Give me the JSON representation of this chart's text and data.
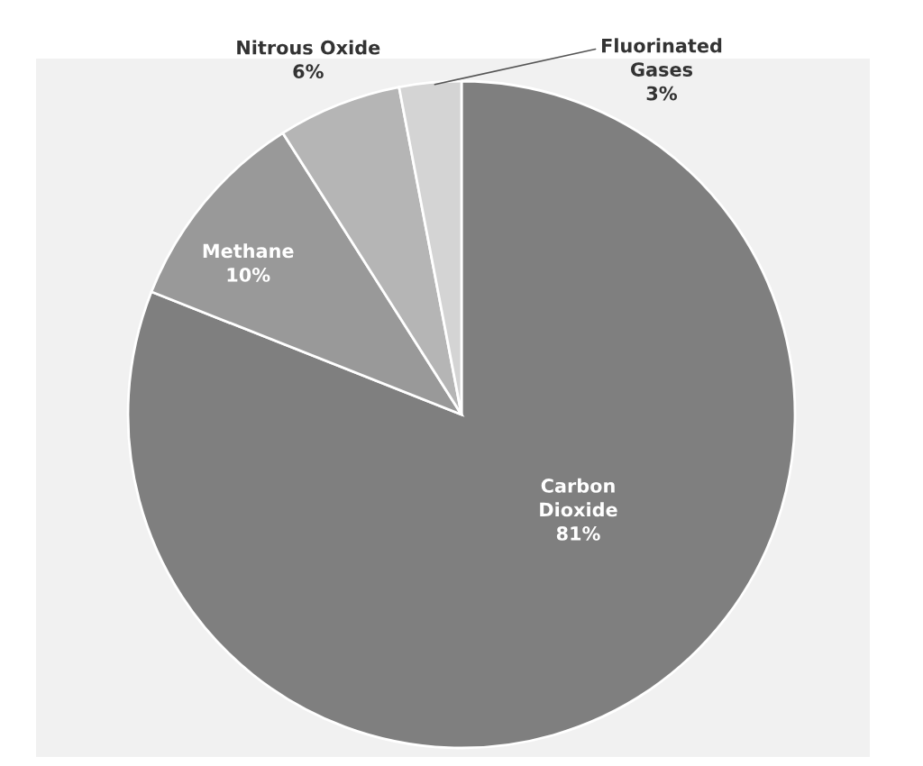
{
  "chart_data": {
    "type": "pie",
    "categories": [
      "Carbon Dioxide",
      "Methane",
      "Nitrous Oxide",
      "Fluorinated Gases"
    ],
    "values": [
      81,
      10,
      6,
      3
    ],
    "colors": [
      "#7f7f7f",
      "#999999",
      "#b5b5b5",
      "#d4d4d4"
    ],
    "value_labels": [
      "81%",
      "10%",
      "6%",
      "3%"
    ],
    "legend": false
  }
}
